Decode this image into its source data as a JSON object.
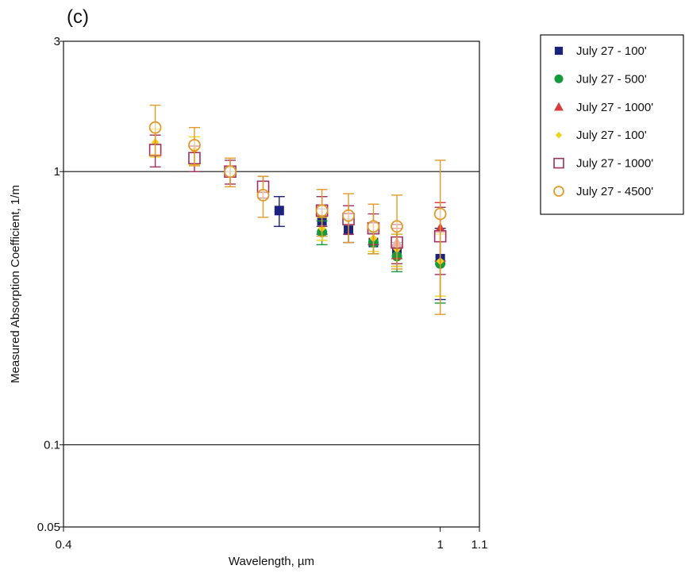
{
  "panel_label": "(c)",
  "chart_data": {
    "type": "scatter",
    "xlabel": "Wavelength, µm",
    "ylabel": "Measured Absorption Coefficient, 1/m",
    "x_scale": "log",
    "y_scale": "log",
    "xlim": [
      0.4,
      1.1
    ],
    "ylim": [
      0.05,
      3
    ],
    "x_ticks": [
      {
        "value": 0.4,
        "label": "0.4"
      },
      {
        "value": 1.0,
        "label": "1"
      },
      {
        "value": 1.1,
        "label": "1.1"
      }
    ],
    "y_ticks": [
      {
        "value": 0.05,
        "label": "0.05"
      },
      {
        "value": 0.1,
        "label": "0.1"
      },
      {
        "value": 1,
        "label": "1"
      },
      {
        "value": 3,
        "label": "3"
      }
    ],
    "gridlines_y": [
      0.1,
      1
    ],
    "legend_position": "top-right outside",
    "series": [
      {
        "name": "July 27 - 100'",
        "marker": "filled-square",
        "color": "#1a237e",
        "x": [
          0.676,
          0.75,
          0.8,
          0.85,
          0.9,
          1.0
        ],
        "y": [
          0.72,
          0.66,
          0.61,
          0.55,
          0.52,
          0.48
        ],
        "err": [
          0.09,
          0.07,
          0.06,
          0.05,
          0.07,
          0.14
        ]
      },
      {
        "name": "July 27 - 500'",
        "marker": "filled-circle",
        "color": "#169b3b",
        "x": [
          0.75,
          0.85,
          0.9,
          1.0
        ],
        "y": [
          0.6,
          0.55,
          0.49,
          0.46
        ],
        "err": [
          0.06,
          0.05,
          0.06,
          0.13
        ]
      },
      {
        "name": "July 27 - 1000'",
        "marker": "filled-triangle",
        "color": "#d93a3a",
        "x": [
          0.9,
          1.0
        ],
        "y": [
          0.55,
          0.62
        ],
        "err": [
          0.07,
          0.15
        ]
      },
      {
        "name": "July 27 - 100'",
        "marker": "filled-diamond",
        "color": "#f2d21a",
        "x": [
          0.5,
          0.55,
          0.75,
          0.85,
          0.9,
          1.0
        ],
        "y": [
          1.28,
          1.2,
          0.62,
          0.57,
          0.52,
          0.47
        ],
        "err": [
          0.15,
          0.14,
          0.06,
          0.06,
          0.07,
          0.12
        ]
      },
      {
        "name": "July 27 - 1000'",
        "marker": "open-square",
        "color": "#a0305d",
        "x": [
          0.5,
          0.55,
          0.6,
          0.65,
          0.75,
          0.8,
          0.85,
          0.9,
          1.0
        ],
        "y": [
          1.2,
          1.12,
          1.0,
          0.88,
          0.72,
          0.67,
          0.62,
          0.55,
          0.58
        ],
        "err": [
          0.16,
          0.12,
          0.1,
          0.08,
          0.09,
          0.08,
          0.08,
          0.09,
          0.16
        ]
      },
      {
        "name": "July 27 - 4500'",
        "marker": "open-circle",
        "color": "#e29a2a",
        "x": [
          0.5,
          0.55,
          0.6,
          0.65,
          0.75,
          0.8,
          0.85,
          0.9,
          1.0
        ],
        "y": [
          1.45,
          1.25,
          1.0,
          0.82,
          0.72,
          0.69,
          0.63,
          0.63,
          0.7
        ],
        "err": [
          0.3,
          0.2,
          0.12,
          0.14,
          0.14,
          0.14,
          0.13,
          0.19,
          0.4
        ]
      }
    ]
  }
}
